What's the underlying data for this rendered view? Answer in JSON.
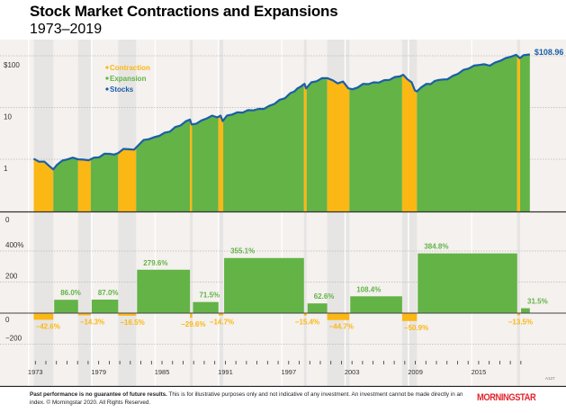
{
  "header": {
    "title": "Stock Market Contractions and Expansions",
    "subtitle": "1973–2019"
  },
  "footer": {
    "disclaimer_bold": "Past performance is no guarantee of future results.",
    "disclaimer_text": " This is for illustrative purposes only and not indicative of any investment. An investment cannot be made directly in an index. © Morningstar 2020. All Rights Reserved.",
    "logo": "MORNINGSTAR",
    "code": "A127"
  },
  "colors": {
    "contraction": "#fbb714",
    "expansion": "#63b346",
    "stocks": "#1a5fa8",
    "background": "#f4f1ee",
    "shade": "#e7e5e4",
    "grid": "#b9b7b5"
  },
  "chart_data": [
    {
      "type": "area",
      "title": "Stock Market Contractions and Expansions",
      "subtitle": "1973–2019",
      "yscale": "log",
      "ylim": [
        0.3,
        200
      ],
      "yticks": [
        1,
        10,
        100
      ],
      "ytick_labels": [
        "1",
        "10",
        "$100"
      ],
      "xlim": [
        1972.6,
        2020.0
      ],
      "legend": {
        "position": "top-left",
        "entries": [
          {
            "label": "Contraction",
            "color": "#fbb714"
          },
          {
            "label": "Expansion",
            "color": "#63b346"
          },
          {
            "label": "Stocks",
            "color": "#1a5fa8"
          }
        ]
      },
      "end_label": "$108.96",
      "end_value": 108.96,
      "grid": true,
      "series": [
        {
          "name": "Stocks",
          "x": [
            1972.9,
            1973.4,
            1973.9,
            1974.4,
            1974.75,
            1975.1,
            1975.6,
            1976.1,
            1976.6,
            1977.1,
            1977.6,
            1978.1,
            1978.6,
            1979.1,
            1979.6,
            1980.1,
            1980.5,
            1980.9,
            1981.4,
            1981.9,
            1982.4,
            1982.8,
            1983.3,
            1983.8,
            1984.3,
            1984.8,
            1985.3,
            1985.8,
            1986.3,
            1986.8,
            1987.3,
            1987.7,
            1987.85,
            1988.3,
            1988.8,
            1989.3,
            1989.8,
            1990.3,
            1990.6,
            1990.8,
            1991.2,
            1991.7,
            1992.2,
            1992.7,
            1993.2,
            1993.7,
            1994.2,
            1994.7,
            1995.2,
            1995.7,
            1996.2,
            1996.7,
            1997.2,
            1997.6,
            1997.9,
            1998.2,
            1998.55,
            1998.7,
            1999.2,
            1999.7,
            2000.2,
            2000.7,
            2001.2,
            2001.7,
            2002.2,
            2002.7,
            2003.1,
            2003.6,
            2004.1,
            2004.6,
            2005.1,
            2005.6,
            2006.1,
            2006.6,
            2007.1,
            2007.6,
            2007.9,
            2008.3,
            2008.7,
            2009.0,
            2009.2,
            2009.6,
            2010.1,
            2010.5,
            2010.9,
            2011.3,
            2011.7,
            2012.1,
            2012.6,
            2013.1,
            2013.6,
            2014.1,
            2014.6,
            2015.1,
            2015.6,
            2016.1,
            2016.6,
            2017.1,
            2017.6,
            2018.1,
            2018.6,
            2018.95,
            2019.3,
            2019.9
          ],
          "values": [
            1.0,
            0.92,
            0.88,
            0.75,
            0.62,
            0.8,
            0.92,
            1.02,
            1.05,
            1.02,
            0.96,
            0.98,
            1.05,
            1.12,
            1.25,
            1.3,
            1.2,
            1.35,
            1.55,
            1.6,
            1.5,
            1.9,
            2.3,
            2.5,
            2.6,
            2.9,
            3.2,
            3.5,
            4.1,
            4.6,
            5.3,
            6.0,
            4.6,
            5.0,
            5.5,
            6.3,
            6.8,
            6.6,
            6.8,
            5.6,
            6.8,
            7.5,
            7.9,
            8.2,
            8.7,
            9.0,
            9.2,
            9.6,
            10.5,
            12.0,
            13.8,
            15.5,
            18.5,
            21.0,
            23.0,
            26.0,
            28.0,
            24.0,
            30.0,
            33.0,
            36.0,
            38.0,
            33.0,
            30.0,
            31.0,
            24.0,
            22.0,
            25.0,
            28.0,
            29.0,
            30.0,
            31.0,
            33.0,
            35.0,
            38.0,
            41.0,
            42.0,
            36.0,
            30.0,
            22.0,
            20.0,
            25.0,
            28.0,
            29.0,
            32.0,
            35.0,
            34.0,
            36.0,
            40.0,
            46.0,
            52.0,
            58.0,
            63.0,
            68.0,
            67.0,
            66.0,
            72.0,
            82.0,
            88.0,
            98.0,
            102.0,
            92.0,
            100.0,
            108.96
          ]
        }
      ]
    },
    {
      "type": "bar",
      "ylabel": "",
      "ylim": [
        -200,
        400
      ],
      "yticks": [
        -200,
        0,
        200,
        400
      ],
      "ytick_labels": [
        "−200",
        "0",
        "200",
        "400%"
      ],
      "top_label": "0",
      "xticks": [
        1973,
        1979,
        1985,
        1991,
        1997,
        2003,
        2009,
        2015
      ],
      "xtick_labels": [
        "1973",
        "1979",
        "1985",
        "1991",
        "1997",
        "2003",
        "2009",
        "2015"
      ],
      "grid": true,
      "periods": [
        {
          "type": "contraction",
          "start": 1972.9,
          "end": 1974.75,
          "value": -42.6,
          "label": "−42.6%"
        },
        {
          "type": "expansion",
          "start": 1974.75,
          "end": 1977.1,
          "value": 86.0,
          "label": "86.0%"
        },
        {
          "type": "contraction",
          "start": 1977.1,
          "end": 1978.3,
          "value": -14.3,
          "label": "−14.3%"
        },
        {
          "type": "expansion",
          "start": 1978.3,
          "end": 1980.9,
          "value": 87.0,
          "label": "87.0%"
        },
        {
          "type": "contraction",
          "start": 1980.9,
          "end": 1982.6,
          "value": -16.5,
          "label": "−16.5%"
        },
        {
          "type": "expansion",
          "start": 1982.6,
          "end": 1987.7,
          "value": 279.6,
          "label": "279.6%"
        },
        {
          "type": "contraction",
          "start": 1987.7,
          "end": 1987.9,
          "value": -29.6,
          "label": "−29.6%"
        },
        {
          "type": "expansion",
          "start": 1987.9,
          "end": 1990.4,
          "value": 71.5,
          "label": "71.5%"
        },
        {
          "type": "contraction",
          "start": 1990.4,
          "end": 1990.85,
          "value": -14.7,
          "label": "−14.7%"
        },
        {
          "type": "expansion",
          "start": 1990.85,
          "end": 1998.5,
          "value": 355.1,
          "label": "355.1%"
        },
        {
          "type": "contraction",
          "start": 1998.5,
          "end": 1998.75,
          "value": -15.4,
          "label": "−15.4%"
        },
        {
          "type": "expansion",
          "start": 1998.75,
          "end": 2000.7,
          "value": 62.6,
          "label": "62.6%"
        },
        {
          "type": "contraction",
          "start": 2000.7,
          "end": 2002.8,
          "value": -44.7,
          "label": "−44.7%"
        },
        {
          "type": "expansion",
          "start": 2002.8,
          "end": 2007.8,
          "value": 108.4,
          "label": "108.4%"
        },
        {
          "type": "contraction",
          "start": 2007.8,
          "end": 2009.2,
          "value": -50.9,
          "label": "−50.9%"
        },
        {
          "type": "expansion",
          "start": 2009.2,
          "end": 2018.7,
          "value": 384.8,
          "label": "384.8%"
        },
        {
          "type": "contraction",
          "start": 2018.7,
          "end": 2018.98,
          "value": -13.5,
          "label": "−13.5%"
        },
        {
          "type": "expansion",
          "start": 2018.98,
          "end": 2019.9,
          "value": 31.5,
          "label": "31.5%"
        }
      ]
    }
  ]
}
